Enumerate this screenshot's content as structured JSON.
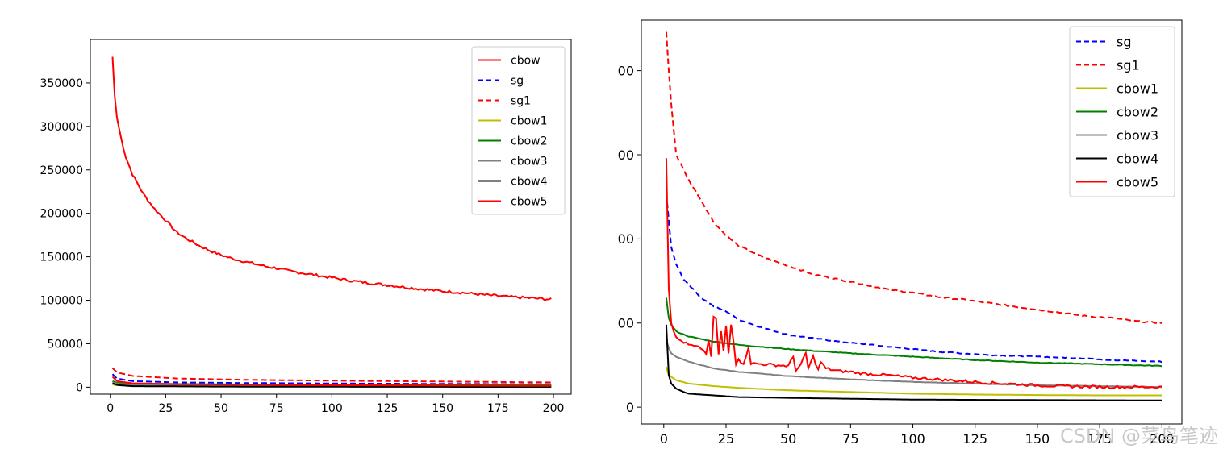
{
  "watermark": "CSDN @菜鸟笔迹",
  "chart_data": [
    {
      "type": "line",
      "xlim": [
        -9,
        208
      ],
      "ylim": [
        -8000,
        400000
      ],
      "xticks": [
        0,
        25,
        50,
        75,
        100,
        125,
        150,
        175,
        200
      ],
      "yticks": [
        0,
        50000,
        100000,
        150000,
        200000,
        250000,
        300000,
        350000
      ],
      "legend": "top-right",
      "series": [
        {
          "name": "cbow",
          "color": "#ff0000",
          "dash": "solid",
          "points": [
            [
              1,
              380000
            ],
            [
              2,
              335000
            ],
            [
              3,
              310000
            ],
            [
              5,
              285000
            ],
            [
              7,
              265000
            ],
            [
              10,
              245000
            ],
            [
              15,
              222000
            ],
            [
              20,
              205000
            ],
            [
              25,
              192000
            ],
            [
              30,
              178000
            ],
            [
              35,
              170000
            ],
            [
              40,
              163000
            ],
            [
              45,
              157000
            ],
            [
              50,
              152000
            ],
            [
              55,
              148000
            ],
            [
              60,
              145000
            ],
            [
              65,
              142000
            ],
            [
              70,
              139000
            ],
            [
              75,
              137000
            ],
            [
              80,
              134000
            ],
            [
              85,
              132000
            ],
            [
              90,
              130000
            ],
            [
              95,
              128000
            ],
            [
              100,
              126000
            ],
            [
              110,
              122000
            ],
            [
              120,
              119000
            ],
            [
              130,
              116000
            ],
            [
              140,
              113000
            ],
            [
              150,
              110500
            ],
            [
              160,
              108500
            ],
            [
              170,
              106000
            ],
            [
              180,
              104000
            ],
            [
              190,
              102500
            ],
            [
              199,
              101000
            ]
          ],
          "noise": 1500
        },
        {
          "name": "sg",
          "color": "#0000ff",
          "dash": "dashed",
          "points": [
            [
              1,
              15000
            ],
            [
              3,
              10000
            ],
            [
              10,
              7000
            ],
            [
              30,
              5500
            ],
            [
              60,
              4800
            ],
            [
              100,
              4300
            ],
            [
              150,
              3800
            ],
            [
              199,
              3400
            ]
          ],
          "noise": 0
        },
        {
          "name": "sg1",
          "color": "#ff0000",
          "dash": "dashed",
          "points": [
            [
              1,
              22000
            ],
            [
              3,
              17000
            ],
            [
              10,
              13000
            ],
            [
              30,
              10000
            ],
            [
              60,
              8500
            ],
            [
              100,
              7500
            ],
            [
              150,
              6500
            ],
            [
              199,
              5500
            ]
          ],
          "noise": 0
        },
        {
          "name": "cbow1",
          "color": "#bfbf00",
          "dash": "solid",
          "points": [
            [
              1,
              3000
            ],
            [
              5,
              2000
            ],
            [
              30,
              1500
            ],
            [
              100,
              1100
            ],
            [
              199,
              800
            ]
          ],
          "noise": 0
        },
        {
          "name": "cbow2",
          "color": "#008000",
          "dash": "solid",
          "points": [
            [
              1,
              7000
            ],
            [
              3,
              5000
            ],
            [
              10,
              4000
            ],
            [
              50,
              3300
            ],
            [
              100,
              2800
            ],
            [
              150,
              2500
            ],
            [
              199,
              2300
            ]
          ],
          "noise": 0
        },
        {
          "name": "cbow3",
          "color": "#808080",
          "dash": "solid",
          "points": [
            [
              1,
              5500
            ],
            [
              3,
              4000
            ],
            [
              10,
              3000
            ],
            [
              50,
              2300
            ],
            [
              100,
              1900
            ],
            [
              150,
              1700
            ],
            [
              199,
              1500
            ]
          ],
          "noise": 0
        },
        {
          "name": "cbow4",
          "color": "#000000",
          "dash": "solid",
          "points": [
            [
              1,
              4500
            ],
            [
              3,
              2500
            ],
            [
              10,
              1200
            ],
            [
              50,
              700
            ],
            [
              100,
              500
            ],
            [
              199,
              300
            ]
          ],
          "noise": 0
        },
        {
          "name": "cbow5",
          "color": "#ff0000",
          "dash": "solid",
          "points": [
            [
              1,
              12000
            ],
            [
              3,
              7000
            ],
            [
              10,
              4500
            ],
            [
              30,
              3500
            ],
            [
              60,
              2900
            ],
            [
              100,
              2300
            ],
            [
              150,
              1800
            ],
            [
              199,
              1500
            ]
          ],
          "noise": 0
        }
      ]
    },
    {
      "type": "line",
      "xlim": [
        -9,
        208
      ],
      "ylim": [
        -1,
        23
      ],
      "xticks": [
        0,
        25,
        50,
        75,
        100,
        125,
        150,
        175,
        200
      ],
      "yticks": [
        0,
        5,
        10,
        15,
        20
      ],
      "ytick_labels": [
        "0",
        "00",
        "00",
        "00",
        "00"
      ],
      "legend": "top-right",
      "series": [
        {
          "name": "sg",
          "color": "#0000ff",
          "dash": "dashed",
          "points": [
            [
              1,
              12.7
            ],
            [
              3,
              9.5
            ],
            [
              5,
              8.5
            ],
            [
              8,
              7.6
            ],
            [
              10,
              7.3
            ],
            [
              15,
              6.5
            ],
            [
              20,
              6.0
            ],
            [
              25,
              5.7
            ],
            [
              30,
              5.2
            ],
            [
              40,
              4.7
            ],
            [
              50,
              4.3
            ],
            [
              60,
              4.1
            ],
            [
              70,
              3.9
            ],
            [
              80,
              3.75
            ],
            [
              90,
              3.6
            ],
            [
              100,
              3.45
            ],
            [
              110,
              3.3
            ],
            [
              120,
              3.2
            ],
            [
              130,
              3.1
            ],
            [
              140,
              3.05
            ],
            [
              150,
              3.0
            ],
            [
              160,
              2.95
            ],
            [
              170,
              2.9
            ],
            [
              180,
              2.8
            ],
            [
              190,
              2.75
            ],
            [
              200,
              2.7
            ]
          ],
          "noise": 0.03
        },
        {
          "name": "sg1",
          "color": "#ff0000",
          "dash": "dashed",
          "points": [
            [
              1,
              22.3
            ],
            [
              2,
              20
            ],
            [
              3,
              18
            ],
            [
              5,
              15
            ],
            [
              10,
              13.5
            ],
            [
              15,
              12.3
            ],
            [
              20,
              11
            ],
            [
              25,
              10.2
            ],
            [
              30,
              9.6
            ],
            [
              40,
              8.9
            ],
            [
              50,
              8.4
            ],
            [
              60,
              7.9
            ],
            [
              70,
              7.6
            ],
            [
              80,
              7.3
            ],
            [
              90,
              7.0
            ],
            [
              100,
              6.8
            ],
            [
              110,
              6.55
            ],
            [
              120,
              6.4
            ],
            [
              130,
              6.2
            ],
            [
              140,
              6.0
            ],
            [
              150,
              5.8
            ],
            [
              160,
              5.6
            ],
            [
              170,
              5.4
            ],
            [
              180,
              5.3
            ],
            [
              190,
              5.1
            ],
            [
              200,
              5.0
            ]
          ],
          "noise": 0.04
        },
        {
          "name": "cbow1",
          "color": "#bfbf00",
          "dash": "solid",
          "points": [
            [
              1,
              2.4
            ],
            [
              2,
              1.9
            ],
            [
              5,
              1.6
            ],
            [
              10,
              1.4
            ],
            [
              20,
              1.25
            ],
            [
              30,
              1.15
            ],
            [
              50,
              1.0
            ],
            [
              75,
              0.9
            ],
            [
              100,
              0.8
            ],
            [
              125,
              0.75
            ],
            [
              150,
              0.72
            ],
            [
              175,
              0.7
            ],
            [
              200,
              0.7
            ]
          ],
          "noise": 0
        },
        {
          "name": "cbow2",
          "color": "#008000",
          "dash": "solid",
          "points": [
            [
              1,
              6.5
            ],
            [
              2,
              5.3
            ],
            [
              3,
              4.9
            ],
            [
              5,
              4.5
            ],
            [
              10,
              4.2
            ],
            [
              20,
              3.9
            ],
            [
              30,
              3.7
            ],
            [
              50,
              3.45
            ],
            [
              75,
              3.2
            ],
            [
              100,
              3.0
            ],
            [
              125,
              2.8
            ],
            [
              150,
              2.65
            ],
            [
              175,
              2.55
            ],
            [
              200,
              2.45
            ]
          ],
          "noise": 0.02
        },
        {
          "name": "cbow3",
          "color": "#808080",
          "dash": "solid",
          "points": [
            [
              1,
              4.0
            ],
            [
              2,
              3.5
            ],
            [
              3,
              3.2
            ],
            [
              5,
              3.0
            ],
            [
              10,
              2.7
            ],
            [
              20,
              2.3
            ],
            [
              30,
              2.1
            ],
            [
              50,
              1.85
            ],
            [
              75,
              1.65
            ],
            [
              100,
              1.5
            ],
            [
              125,
              1.4
            ],
            [
              150,
              1.3
            ],
            [
              175,
              1.25
            ],
            [
              200,
              1.2
            ]
          ],
          "noise": 0.01
        },
        {
          "name": "cbow4",
          "color": "#000000",
          "dash": "solid",
          "points": [
            [
              1,
              4.9
            ],
            [
              2,
              1.9
            ],
            [
              3,
              1.4
            ],
            [
              5,
              1.1
            ],
            [
              8,
              0.9
            ],
            [
              10,
              0.8
            ],
            [
              20,
              0.7
            ],
            [
              30,
              0.6
            ],
            [
              50,
              0.55
            ],
            [
              75,
              0.5
            ],
            [
              100,
              0.45
            ],
            [
              150,
              0.42
            ],
            [
              200,
              0.4
            ]
          ],
          "noise": 0
        },
        {
          "name": "cbow5",
          "color": "#ff0000",
          "dash": "solid",
          "points": [
            [
              1,
              14.8
            ],
            [
              2,
              7
            ],
            [
              3,
              5
            ],
            [
              5,
              4.1
            ],
            [
              10,
              3.7
            ],
            [
              15,
              3.5
            ],
            [
              17,
              3.2
            ],
            [
              18,
              3.9
            ],
            [
              19,
              3.0
            ],
            [
              20,
              5.3
            ],
            [
              21,
              5.3
            ],
            [
              22,
              3.1
            ],
            [
              23,
              4.5
            ],
            [
              24,
              3.3
            ],
            [
              25,
              4.8
            ],
            [
              26,
              3.2
            ],
            [
              27,
              4.9
            ],
            [
              28,
              4.0
            ],
            [
              29,
              2.6
            ],
            [
              30,
              2.9
            ],
            [
              32,
              2.5
            ],
            [
              34,
              3.6
            ],
            [
              35,
              2.6
            ],
            [
              40,
              2.55
            ],
            [
              45,
              2.5
            ],
            [
              50,
              2.45
            ],
            [
              52,
              3.0
            ],
            [
              53,
              2.2
            ],
            [
              55,
              2.5
            ],
            [
              57,
              3.2
            ],
            [
              58,
              2.3
            ],
            [
              60,
              3.0
            ],
            [
              62,
              2.2
            ],
            [
              63,
              2.7
            ],
            [
              65,
              2.3
            ],
            [
              70,
              2.15
            ],
            [
              75,
              2.1
            ],
            [
              80,
              2.0
            ],
            [
              90,
              1.9
            ],
            [
              100,
              1.75
            ],
            [
              110,
              1.65
            ],
            [
              120,
              1.55
            ],
            [
              130,
              1.45
            ],
            [
              140,
              1.38
            ],
            [
              150,
              1.3
            ],
            [
              160,
              1.25
            ],
            [
              170,
              1.22
            ],
            [
              180,
              1.2
            ],
            [
              190,
              1.2
            ],
            [
              200,
              1.2
            ]
          ],
          "noise": 0.08
        }
      ]
    }
  ]
}
